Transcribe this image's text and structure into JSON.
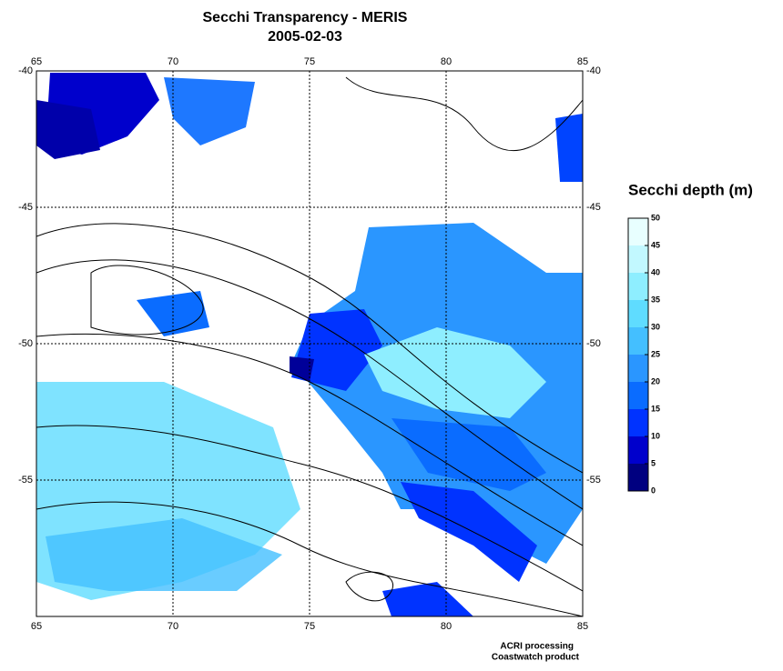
{
  "map": {
    "title": "Secchi Transparency - MERIS",
    "subtitle": "2005-02-03",
    "xlim": [
      65,
      85
    ],
    "ylim": [
      -60,
      -40
    ],
    "xticks": [
      65,
      70,
      75,
      80,
      85
    ],
    "yticks": [
      -40,
      -45,
      -50,
      -55
    ],
    "grid": true,
    "colorbar": {
      "title": "Secchi depth (m)",
      "lim": [
        0,
        50
      ],
      "ticks": [
        0,
        5,
        10,
        15,
        20,
        25,
        30,
        35,
        40,
        45,
        50
      ],
      "colors": [
        "#000080",
        "#0000cc",
        "#0033ff",
        "#0a6cff",
        "#2a96ff",
        "#44bfff",
        "#5fdcff",
        "#8eeeff",
        "#c2f8ff",
        "#e8ffff"
      ]
    },
    "credits": [
      "ACRI processing",
      "Coastwatch product"
    ]
  }
}
